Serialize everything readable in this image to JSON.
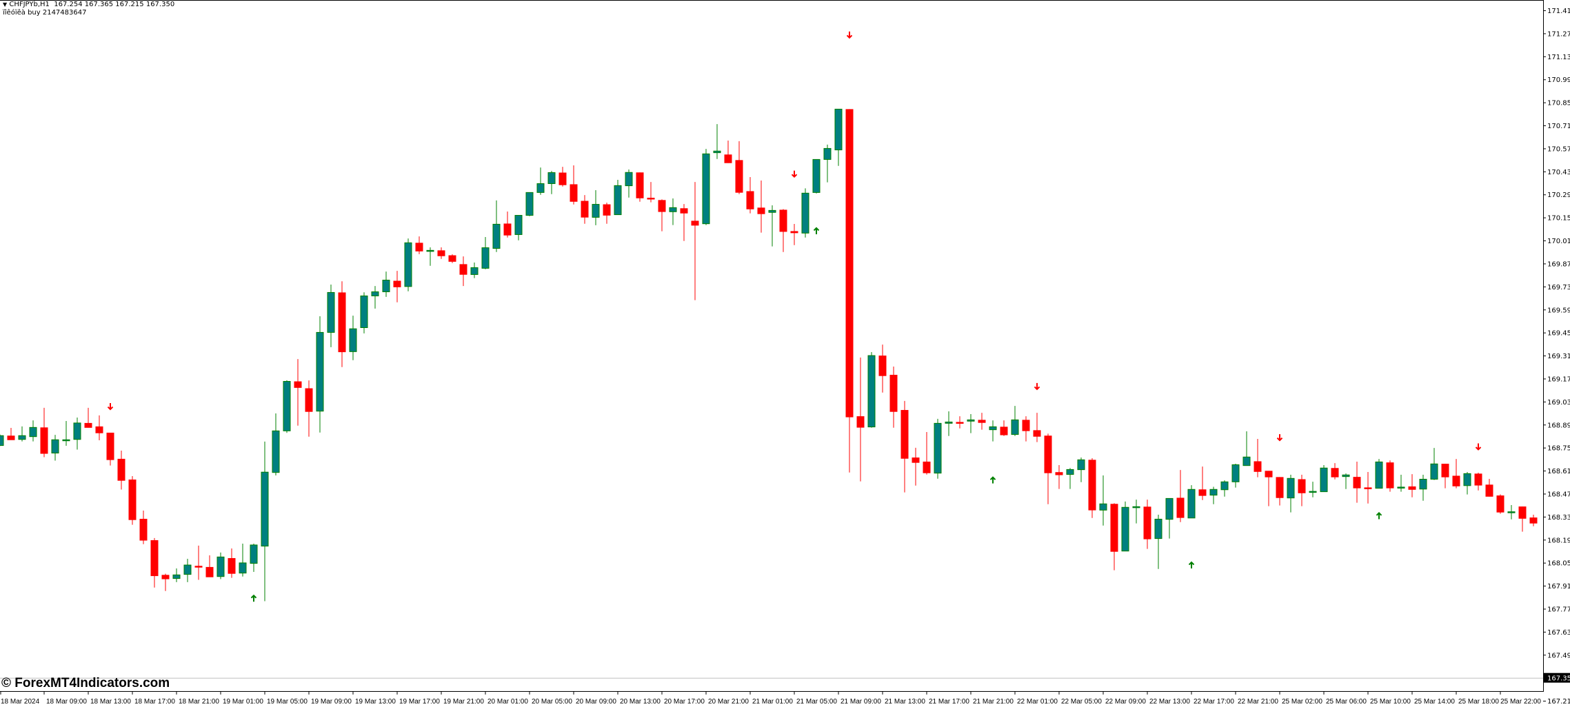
{
  "header": {
    "symbol_line": "CHFJPYb,H1  167.254 167.365 167.215 167.350",
    "indicator_line": "ïîêóïêà buy 2147483647",
    "menu_icon": "triangle-down-icon"
  },
  "watermark": "© ForexMT4Indicators.com",
  "chart_data": {
    "type": "candlestick",
    "symbol": "CHFJPYb",
    "timeframe": "H1",
    "ylim": [
      167.27,
      171.47
    ],
    "grid": false,
    "colors": {
      "bull_body": "#008080",
      "bull_border": "#008000",
      "bear": "#FF0000",
      "sell_arrow": "#FF0000",
      "buy_arrow": "#008000",
      "price_line": "#C0C0C0"
    },
    "current_price": "167.350",
    "y_ticks": [
      "171.410",
      "171.270",
      "171.130",
      "170.990",
      "170.850",
      "170.710",
      "170.570",
      "170.430",
      "170.290",
      "170.150",
      "170.010",
      "169.870",
      "169.730",
      "169.590",
      "169.450",
      "169.310",
      "169.170",
      "169.030",
      "168.890",
      "168.750",
      "168.610",
      "168.470",
      "168.330",
      "168.190",
      "168.050",
      "167.910",
      "167.770",
      "167.630",
      "167.490",
      "167.350",
      "167.210"
    ],
    "x_tick_labels": [
      "18 Mar 2024",
      "18 Mar 09:00",
      "18 Mar 13:00",
      "18 Mar 17:00",
      "18 Mar 21:00",
      "19 Mar 01:00",
      "19 Mar 05:00",
      "19 Mar 09:00",
      "19 Mar 13:00",
      "19 Mar 17:00",
      "19 Mar 21:00",
      "20 Mar 01:00",
      "20 Mar 05:00",
      "20 Mar 09:00",
      "20 Mar 13:00",
      "20 Mar 17:00",
      "20 Mar 21:00",
      "21 Mar 01:00",
      "21 Mar 05:00",
      "21 Mar 09:00",
      "21 Mar 13:00",
      "21 Mar 17:00",
      "21 Mar 21:00",
      "22 Mar 01:00",
      "22 Mar 05:00",
      "22 Mar 09:00",
      "22 Mar 13:00",
      "22 Mar 17:00",
      "22 Mar 21:00",
      "25 Mar 02:00",
      "25 Mar 06:00",
      "25 Mar 10:00",
      "25 Mar 14:00",
      "25 Mar 18:00",
      "25 Mar 22:00"
    ],
    "ohlc_columns": [
      "open",
      "high",
      "low",
      "close"
    ],
    "ohlc": [
      [
        168.763,
        168.83,
        168.76,
        168.823
      ],
      [
        168.823,
        168.87,
        168.8,
        168.8
      ],
      [
        168.8,
        168.879,
        168.788,
        168.823
      ],
      [
        168.817,
        168.916,
        168.788,
        168.873
      ],
      [
        168.873,
        168.992,
        168.692,
        168.717
      ],
      [
        168.717,
        168.828,
        168.671,
        168.798
      ],
      [
        168.798,
        168.912,
        168.761,
        168.798
      ],
      [
        168.8,
        168.933,
        168.738,
        168.9
      ],
      [
        168.9,
        168.992,
        168.872,
        168.875
      ],
      [
        168.879,
        168.946,
        168.795,
        168.842
      ],
      [
        168.841,
        168.841,
        168.641,
        168.679
      ],
      [
        168.682,
        168.732,
        168.495,
        168.553
      ],
      [
        168.556,
        168.577,
        168.281,
        168.314
      ],
      [
        168.317,
        168.367,
        168.163,
        168.189
      ],
      [
        168.187,
        168.2,
        167.899,
        167.973
      ],
      [
        167.976,
        167.983,
        167.878,
        167.954
      ],
      [
        167.954,
        168.015,
        167.932,
        167.976
      ],
      [
        167.979,
        168.074,
        167.932,
        168.036
      ],
      [
        168.031,
        168.154,
        167.946,
        168.025
      ],
      [
        168.024,
        168.095,
        167.966,
        167.966
      ],
      [
        167.966,
        168.112,
        167.95,
        168.085
      ],
      [
        168.078,
        168.137,
        167.958,
        167.987
      ],
      [
        167.987,
        168.166,
        167.966,
        168.049
      ],
      [
        168.046,
        168.166,
        167.994,
        168.158
      ],
      [
        168.151,
        168.787,
        167.816,
        168.601
      ],
      [
        168.599,
        168.958,
        168.581,
        168.852
      ],
      [
        168.852,
        169.16,
        168.84,
        169.153
      ],
      [
        169.153,
        169.289,
        168.884,
        169.118
      ],
      [
        169.111,
        169.159,
        168.817,
        168.972
      ],
      [
        168.972,
        169.549,
        168.842,
        169.451
      ],
      [
        169.451,
        169.742,
        169.361,
        169.694
      ],
      [
        169.694,
        169.762,
        169.24,
        169.335
      ],
      [
        169.334,
        169.553,
        169.282,
        169.473
      ],
      [
        169.48,
        169.695,
        169.445,
        169.673
      ],
      [
        169.673,
        169.733,
        169.596,
        169.698
      ],
      [
        169.698,
        169.821,
        169.667,
        169.769
      ],
      [
        169.765,
        169.825,
        169.634,
        169.73
      ],
      [
        169.73,
        170.022,
        169.701,
        169.996
      ],
      [
        169.996,
        170.035,
        169.927,
        169.948
      ],
      [
        169.947,
        169.968,
        169.856,
        169.95
      ],
      [
        169.95,
        169.968,
        169.898,
        169.919
      ],
      [
        169.92,
        169.926,
        169.873,
        169.885
      ],
      [
        169.866,
        169.913,
        169.733,
        169.806
      ],
      [
        169.803,
        169.876,
        169.781,
        169.845
      ],
      [
        169.841,
        170.031,
        169.835,
        169.966
      ],
      [
        169.962,
        170.254,
        169.94,
        170.109
      ],
      [
        170.113,
        170.186,
        170.028,
        170.045
      ],
      [
        170.046,
        170.163,
        170.011,
        170.163
      ],
      [
        170.163,
        170.302,
        170.158,
        170.302
      ],
      [
        170.302,
        170.454,
        170.288,
        170.356
      ],
      [
        170.356,
        170.433,
        170.292,
        170.423
      ],
      [
        170.423,
        170.458,
        170.338,
        170.351
      ],
      [
        170.352,
        170.467,
        170.229,
        170.25
      ],
      [
        170.251,
        170.286,
        170.112,
        170.154
      ],
      [
        170.151,
        170.316,
        170.103,
        170.23
      ],
      [
        170.23,
        170.24,
        170.112,
        170.166
      ],
      [
        170.167,
        170.379,
        170.167,
        170.344
      ],
      [
        170.343,
        170.442,
        170.271,
        170.424
      ],
      [
        170.424,
        170.424,
        170.246,
        170.271
      ],
      [
        170.27,
        170.366,
        170.242,
        170.264
      ],
      [
        170.256,
        170.26,
        170.066,
        170.188
      ],
      [
        170.185,
        170.266,
        170.104,
        170.21
      ],
      [
        170.206,
        170.232,
        170.007,
        170.179
      ],
      [
        170.13,
        170.366,
        169.647,
        170.105
      ],
      [
        170.112,
        170.567,
        170.104,
        170.537
      ],
      [
        170.544,
        170.718,
        170.506,
        170.554
      ],
      [
        170.533,
        170.618,
        170.481,
        170.485
      ],
      [
        170.499,
        170.614,
        170.292,
        170.305
      ],
      [
        170.31,
        170.396,
        170.175,
        170.204
      ],
      [
        170.21,
        170.375,
        170.058,
        170.175
      ],
      [
        170.181,
        170.224,
        169.974,
        170.193
      ],
      [
        170.197,
        170.201,
        169.94,
        170.067
      ],
      [
        170.067,
        170.111,
        169.982,
        170.059
      ],
      [
        170.055,
        170.327,
        170.028,
        170.298
      ],
      [
        170.302,
        170.503,
        170.296,
        170.503
      ],
      [
        170.503,
        170.593,
        170.364,
        170.57
      ],
      [
        170.561,
        170.809,
        170.464,
        170.809
      ],
      [
        170.809,
        170.809,
        168.599,
        168.939
      ],
      [
        168.941,
        169.298,
        168.545,
        168.876
      ],
      [
        168.876,
        169.331,
        168.871,
        169.31
      ],
      [
        169.31,
        169.377,
        169.085,
        169.19
      ],
      [
        169.193,
        169.243,
        168.871,
        168.972
      ],
      [
        168.979,
        169.034,
        168.478,
        168.687
      ],
      [
        168.69,
        168.749,
        168.519,
        168.662
      ],
      [
        168.665,
        168.845,
        168.586,
        168.599
      ],
      [
        168.595,
        168.925,
        168.561,
        168.898
      ],
      [
        168.898,
        168.971,
        168.821,
        168.906
      ],
      [
        168.906,
        168.941,
        168.867,
        168.905
      ],
      [
        168.911,
        168.954,
        168.838,
        168.919
      ],
      [
        168.919,
        168.962,
        168.859,
        168.905
      ],
      [
        168.859,
        168.916,
        168.788,
        168.877
      ],
      [
        168.877,
        168.916,
        168.821,
        168.83
      ],
      [
        168.83,
        169.004,
        168.821,
        168.919
      ],
      [
        168.919,
        168.941,
        168.788,
        168.855
      ],
      [
        168.856,
        168.962,
        168.784,
        168.821
      ],
      [
        168.823,
        168.835,
        168.406,
        168.599
      ],
      [
        168.601,
        168.644,
        168.499,
        168.587
      ],
      [
        168.587,
        168.626,
        168.499,
        168.617
      ],
      [
        168.616,
        168.69,
        168.54,
        168.676
      ],
      [
        168.676,
        168.686,
        168.322,
        168.373
      ],
      [
        168.37,
        168.581,
        168.276,
        168.408
      ],
      [
        168.408,
        168.412,
        168.004,
        168.121
      ],
      [
        168.121,
        168.422,
        168.121,
        168.387
      ],
      [
        168.387,
        168.434,
        168.289,
        168.391
      ],
      [
        168.391,
        168.434,
        168.134,
        168.197
      ],
      [
        168.197,
        168.342,
        168.012,
        168.315
      ],
      [
        168.314,
        168.441,
        168.197,
        168.441
      ],
      [
        168.445,
        168.614,
        168.297,
        168.327
      ],
      [
        168.322,
        168.522,
        168.322,
        168.496
      ],
      [
        168.496,
        168.635,
        168.431,
        168.461
      ],
      [
        168.461,
        168.512,
        168.406,
        168.496
      ],
      [
        168.494,
        168.551,
        168.452,
        168.542
      ],
      [
        168.542,
        168.652,
        168.507,
        168.646
      ],
      [
        168.641,
        168.849,
        168.641,
        168.693
      ],
      [
        168.667,
        168.803,
        168.57,
        168.607
      ],
      [
        168.609,
        168.609,
        168.394,
        168.574
      ],
      [
        168.571,
        168.571,
        168.398,
        168.448
      ],
      [
        168.444,
        168.585,
        168.356,
        168.563
      ],
      [
        168.558,
        168.585,
        168.394,
        168.477
      ],
      [
        168.482,
        168.543,
        168.448,
        168.484
      ],
      [
        168.482,
        168.644,
        168.482,
        168.626
      ],
      [
        168.626,
        168.656,
        168.557,
        168.574
      ],
      [
        168.574,
        168.593,
        168.498,
        168.584
      ],
      [
        168.572,
        168.665,
        168.415,
        168.507
      ],
      [
        168.508,
        168.602,
        168.41,
        168.503
      ],
      [
        168.503,
        168.681,
        168.503,
        168.663
      ],
      [
        168.66,
        168.672,
        168.482,
        168.507
      ],
      [
        168.507,
        168.585,
        168.482,
        168.51
      ],
      [
        168.514,
        168.589,
        168.448,
        168.498
      ],
      [
        168.498,
        168.585,
        168.427,
        168.558
      ],
      [
        168.558,
        168.748,
        168.553,
        168.651
      ],
      [
        168.652,
        168.652,
        168.503,
        168.574
      ],
      [
        168.579,
        168.681,
        168.503,
        168.519
      ],
      [
        168.519,
        168.602,
        168.465,
        168.592
      ],
      [
        168.592,
        168.598,
        168.49,
        168.524
      ],
      [
        168.525,
        168.56,
        168.452,
        168.456
      ],
      [
        168.459,
        168.466,
        168.348,
        168.36
      ],
      [
        168.357,
        168.401,
        168.314,
        168.36
      ],
      [
        168.392,
        168.392,
        168.239,
        168.322
      ],
      [
        168.325,
        168.342,
        168.272,
        168.293
      ]
    ],
    "signals": [
      {
        "index": 10,
        "type": "sell",
        "price": 169.0
      },
      {
        "index": 23,
        "type": "buy",
        "price": 167.834
      },
      {
        "index": 72,
        "type": "sell",
        "price": 170.414
      },
      {
        "index": 74,
        "type": "buy",
        "price": 170.069
      },
      {
        "index": 77,
        "type": "sell",
        "price": 171.26
      },
      {
        "index": 90,
        "type": "buy",
        "price": 168.553
      },
      {
        "index": 94,
        "type": "sell",
        "price": 169.122
      },
      {
        "index": 108,
        "type": "buy",
        "price": 168.036
      },
      {
        "index": 116,
        "type": "sell",
        "price": 168.811
      },
      {
        "index": 125,
        "type": "buy",
        "price": 168.336
      },
      {
        "index": 134,
        "type": "sell",
        "price": 168.755
      }
    ]
  }
}
